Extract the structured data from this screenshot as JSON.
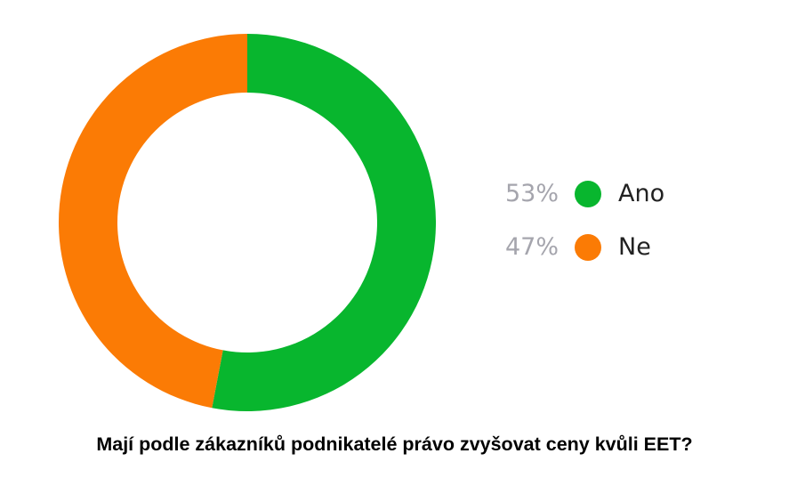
{
  "chart_data": {
    "type": "pie",
    "style": "donut",
    "caption": "Mají podle zákazníků podnikatelé právo zvyšovat ceny kvůli EET?",
    "legend_position": "right",
    "slices": [
      {
        "label": "Ano",
        "value": 53,
        "percent_label": "53%",
        "color": "#08b62e"
      },
      {
        "label": "Ne",
        "value": 47,
        "percent_label": "47%",
        "color": "#fb7b05"
      }
    ]
  }
}
